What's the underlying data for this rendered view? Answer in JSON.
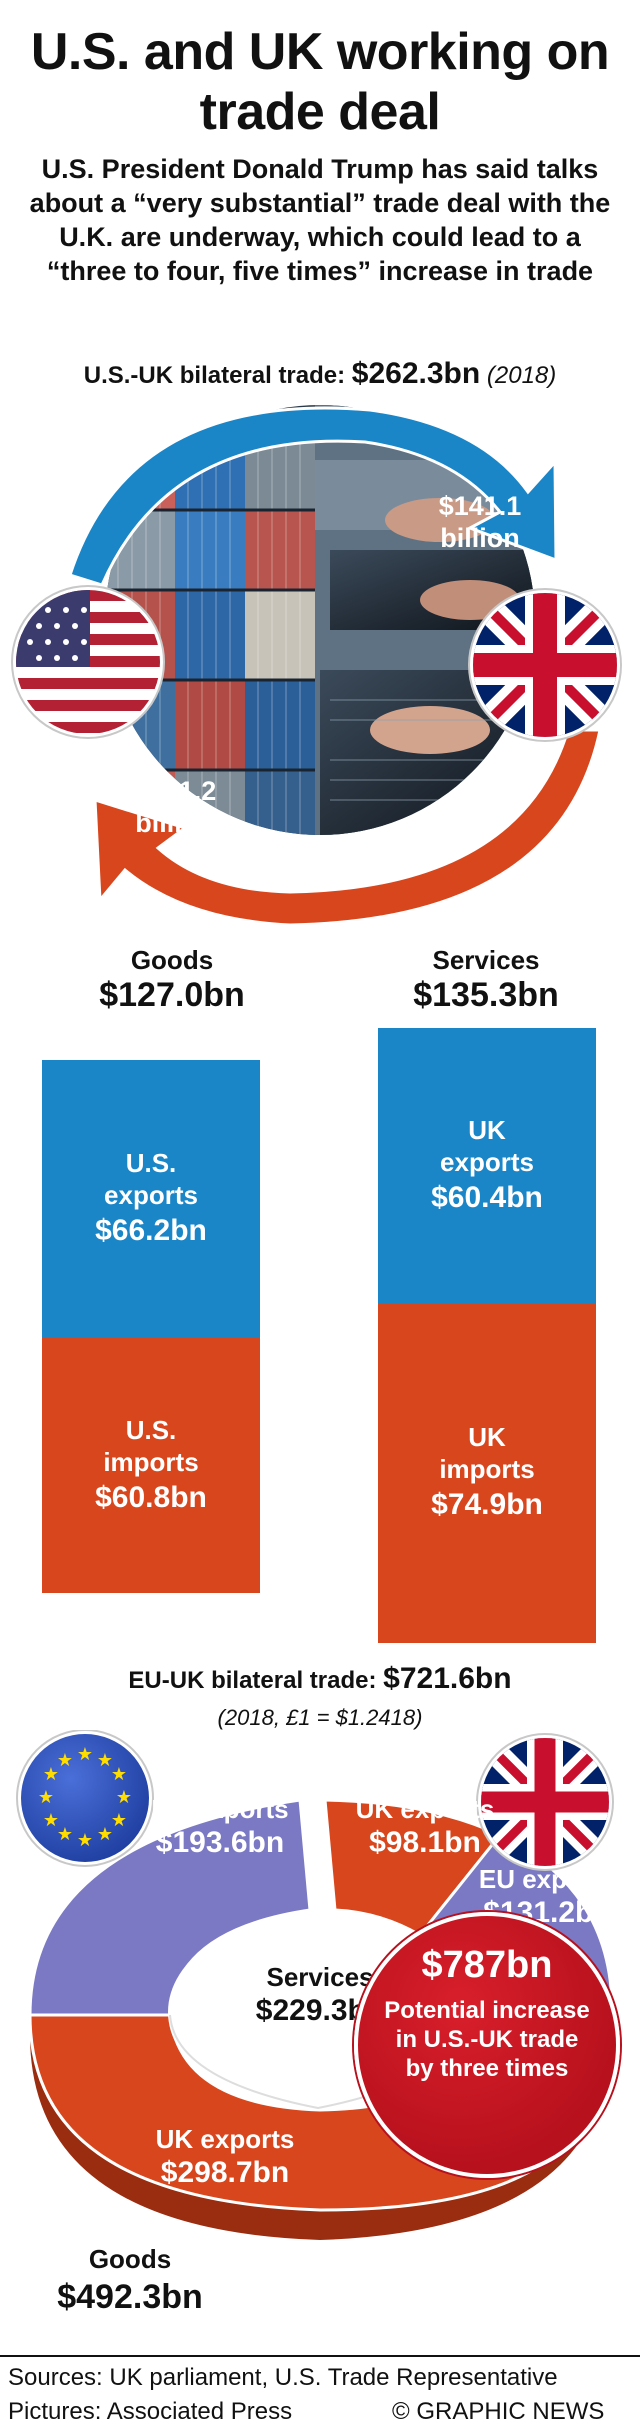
{
  "title": "U.S. and UK working on trade deal",
  "subtitle": "U.S. President Donald Trump has said talks about a “very substantial” trade deal with the U.K. are underway, which could lead to a “three to four, five times” increase in trade",
  "us_uk": {
    "label": "U.S.-UK bilateral trade:",
    "total": "$262.3bn",
    "year": "(2018)",
    "flow_top": [
      "$141.1",
      "billion"
    ],
    "flow_bottom": [
      "$121.2",
      "billion"
    ]
  },
  "bars": {
    "goods": {
      "name": "Goods",
      "total": "$127.0bn",
      "top": {
        "l1": "U.S.",
        "l2": "exports",
        "value": "$66.2bn"
      },
      "bottom": {
        "l1": "U.S.",
        "l2": "imports",
        "value": "$60.8bn"
      }
    },
    "services": {
      "name": "Services",
      "total": "$135.3bn",
      "top": {
        "l1": "UK",
        "l2": "exports",
        "value": "$60.4bn"
      },
      "bottom": {
        "l1": "UK",
        "l2": "imports",
        "value": "$74.9bn"
      }
    }
  },
  "eu_uk": {
    "label": "EU-UK bilateral trade:",
    "total": "$721.6bn",
    "note": "(2018, £1 = $1.2418)",
    "goods_eu_exports": {
      "name": "EU exports",
      "value": "$193.6bn"
    },
    "goods_uk_exports": {
      "name": "UK exports",
      "value": "$298.7bn"
    },
    "services_uk_exports": {
      "name": "UK exports",
      "value": "$98.1bn"
    },
    "services_eu_exports": {
      "name": "EU exports",
      "value": "$131.2bn"
    },
    "services": {
      "name": "Services",
      "value": "$229.3bn"
    },
    "goods": {
      "name": "Goods",
      "value": "$492.3bn"
    }
  },
  "potential": {
    "value": "$787bn",
    "text": "Potential increase in U.S.-UK trade by three times"
  },
  "footer": {
    "sources": "Sources: UK parliament, U.S. Trade Representative",
    "pictures": "Pictures: Associated Press",
    "credit": "© GRAPHIC NEWS"
  },
  "colors": {
    "blue": "#1a86c8",
    "orange": "#d8461d",
    "purple": "#7b79c4",
    "red": "#b7111d"
  }
}
